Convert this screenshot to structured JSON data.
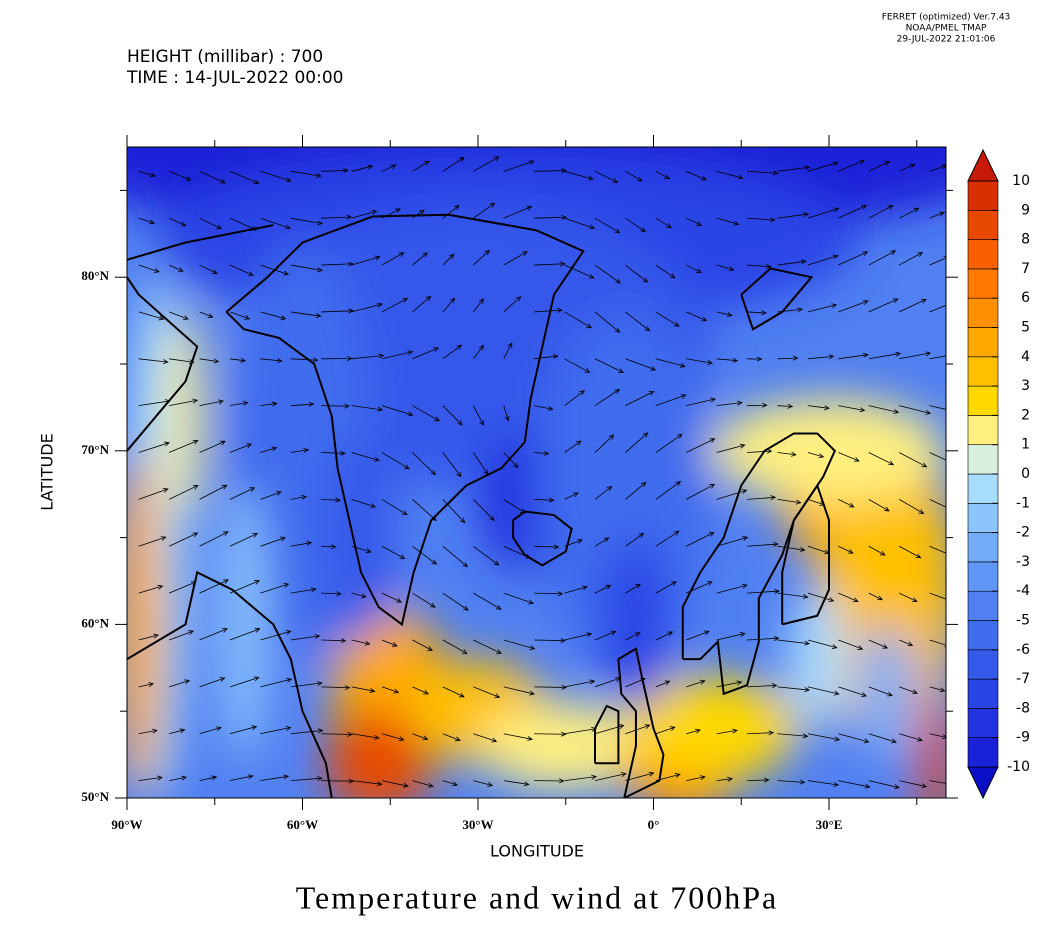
{
  "header": {
    "software": [
      "FERRET (optimized) Ver.7.43",
      "NOAA/PMEL TMAP",
      "29-JUL-2022 21:01:06"
    ],
    "height_label": "HEIGHT (millibar) : 700",
    "time_label": "TIME : 14-JUL-2022 00:00"
  },
  "chart_data": {
    "type": "map",
    "title": "Temperature and wind at 700hPa",
    "x_label": "LONGITUDE",
    "y_label": "LATITUDE",
    "xlim": [
      -90,
      50
    ],
    "ylim": [
      50,
      87.5
    ],
    "xticks": [
      {
        "value": -90,
        "label": "90°W"
      },
      {
        "value": -60,
        "label": "60°W"
      },
      {
        "value": -30,
        "label": "30°W"
      },
      {
        "value": 0,
        "label": "0°"
      },
      {
        "value": 30,
        "label": "30°E"
      }
    ],
    "yticks": [
      {
        "value": 50,
        "label": "50°N"
      },
      {
        "value": 60,
        "label": "60°N"
      },
      {
        "value": 70,
        "label": "70°N"
      },
      {
        "value": 80,
        "label": "80°N"
      }
    ],
    "x_minor_ticks": [
      -75,
      -45,
      -15,
      15,
      45
    ],
    "y_minor_ticks": [
      55,
      65,
      75,
      85
    ],
    "colorbar": {
      "levels": [
        -10,
        -9,
        -8,
        -7,
        -6,
        -5,
        -4,
        -3,
        -2,
        -1,
        0,
        1,
        2,
        3,
        4,
        5,
        6,
        7,
        8,
        9,
        10
      ],
      "colors": [
        "#0b10c8",
        "#1a22d8",
        "#2233e0",
        "#2a45e6",
        "#3458ea",
        "#406cee",
        "#5080f2",
        "#6096f6",
        "#74acfa",
        "#8cc4fc",
        "#a8dcfc",
        "#d8f0e0",
        "#fff080",
        "#ffd800",
        "#ffc000",
        "#ffa800",
        "#ff9000",
        "#ff7800",
        "#f86000",
        "#e84800",
        "#d83000",
        "#c81808"
      ]
    }
  }
}
